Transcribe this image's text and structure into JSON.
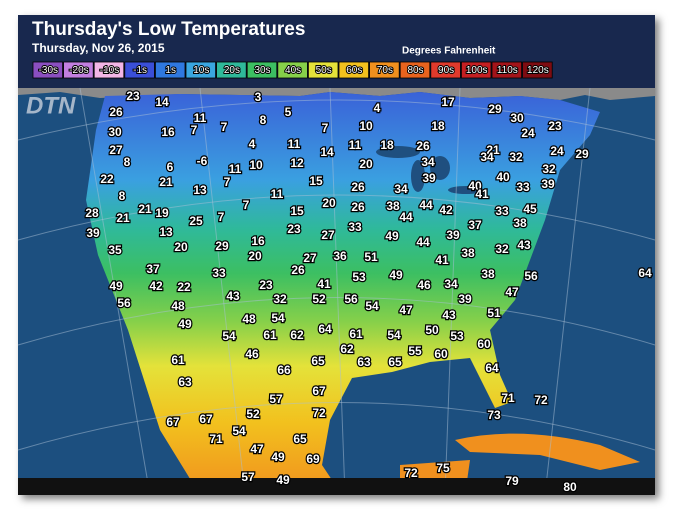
{
  "header": {
    "title": "Thursday's Low Temperatures",
    "date": "Thursday, Nov 26, 2015",
    "units": "Degrees Fahrenheit",
    "logo": "DTN"
  },
  "legend": [
    {
      "label": "-30s",
      "color": "#8a4fc0"
    },
    {
      "label": "-20s",
      "color": "#c27fe0"
    },
    {
      "label": "-10s",
      "color": "#f2b6e6"
    },
    {
      "label": "-1s",
      "color": "#3a4fd8"
    },
    {
      "label": "1s",
      "color": "#2f78e0"
    },
    {
      "label": "10s",
      "color": "#3aa6e0"
    },
    {
      "label": "20s",
      "color": "#2fb99a"
    },
    {
      "label": "30s",
      "color": "#3cbf62"
    },
    {
      "label": "40s",
      "color": "#86d04a"
    },
    {
      "label": "50s",
      "color": "#e4e23a"
    },
    {
      "label": "60s",
      "color": "#f2c11e"
    },
    {
      "label": "70s",
      "color": "#f0901e"
    },
    {
      "label": "80s",
      "color": "#e8631e"
    },
    {
      "label": "90s",
      "color": "#e03a2c"
    },
    {
      "label": "100s",
      "color": "#c41f22"
    },
    {
      "label": "110s",
      "color": "#a3141a"
    },
    {
      "label": "120s",
      "color": "#7e0c12"
    }
  ],
  "temps": [
    23,
    14,
    3,
    26,
    11,
    8,
    5,
    4,
    17,
    29,
    30,
    30,
    16,
    7,
    7,
    7,
    10,
    18,
    24,
    23,
    27,
    4,
    11,
    11,
    18,
    26,
    21,
    34,
    32,
    24,
    29,
    8,
    6,
    -6,
    11,
    10,
    12,
    14,
    20,
    34,
    32,
    22,
    21,
    7,
    13,
    11,
    15,
    26,
    34,
    39,
    40,
    41,
    40,
    33,
    39,
    8,
    21,
    19,
    7,
    15,
    20,
    26,
    38,
    44,
    44,
    42,
    33,
    45,
    28,
    21,
    25,
    7,
    39,
    13,
    23,
    27,
    33,
    49,
    44,
    39,
    37,
    38,
    32,
    43,
    35,
    20,
    29,
    16,
    20,
    27,
    36,
    51,
    38,
    41,
    26,
    53,
    49,
    38,
    56,
    37,
    33,
    49,
    42,
    22,
    23,
    41,
    46,
    34,
    64,
    47,
    43,
    32,
    52,
    56,
    54,
    56,
    48,
    39,
    47,
    43,
    51,
    48,
    54,
    49,
    64,
    61,
    50,
    53,
    54,
    61,
    62,
    54,
    60,
    46,
    62,
    55,
    60,
    65,
    63,
    65,
    61,
    66,
    64,
    63,
    67,
    57,
    71,
    72,
    52,
    72,
    73,
    67,
    67,
    54,
    71,
    65,
    47,
    49,
    69,
    72,
    75,
    57,
    49,
    79,
    80
  ]
}
